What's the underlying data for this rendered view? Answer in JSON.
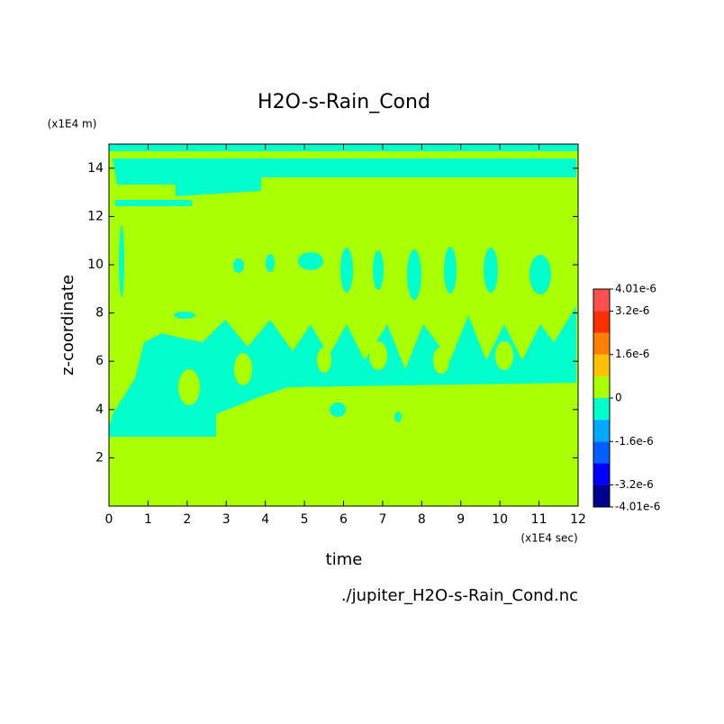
{
  "chart_data": {
    "type": "contour",
    "title": "H2O-s-Rain_Cond",
    "x_label": "time",
    "x_units": "(x1E4 sec)",
    "y_label": "z-coordinate",
    "y_units": "(x1E4 m)",
    "footer": "./jupiter_H2O-s-Rain_Cond.nc",
    "xlim": [
      0,
      12
    ],
    "xticks": [
      0,
      1,
      2,
      3,
      4,
      5,
      6,
      7,
      8,
      9,
      10,
      11,
      12
    ],
    "ylim": [
      0,
      15
    ],
    "yticks": [
      2,
      4,
      6,
      8,
      10,
      12,
      14
    ],
    "grid": false,
    "colorbar": {
      "levels": [
        -4.01e-06,
        -3.2e-06,
        -2.4e-06,
        -1.6e-06,
        -8e-07,
        0,
        8e-07,
        1.6e-06,
        2.4e-06,
        3.2e-06,
        4.01e-06
      ],
      "colors": [
        "#000090",
        "#0000ff",
        "#0060ff",
        "#00a8ff",
        "#00ffcc",
        "#aaff00",
        "#ffc000",
        "#ff8000",
        "#ff3000",
        "#ff5050"
      ],
      "ticks": [
        {
          "value": -4.01e-06,
          "label": "-4.01e-6"
        },
        {
          "value": -3.2e-06,
          "label": "-3.2e-6"
        },
        {
          "value": -1.6e-06,
          "label": "-1.6e-6"
        },
        0,
        {
          "value": 1.6e-06,
          "label": "1.6e-6"
        },
        {
          "value": 3.2e-06,
          "label": "3.2e-6"
        },
        {
          "value": 4.01e-06,
          "label": "4.01e-6"
        }
      ]
    }
  }
}
